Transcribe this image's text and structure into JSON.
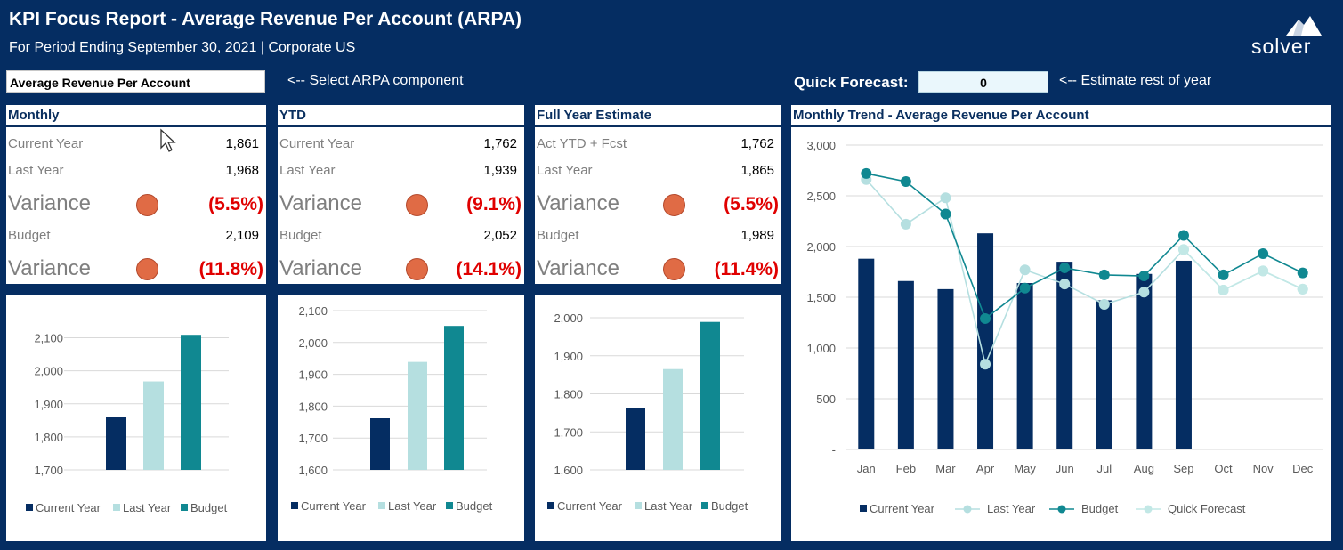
{
  "header": {
    "title": "KPI Focus Report - Average Revenue Per Account (ARPA)",
    "subtitle": "For Period Ending September 30, 2021 | Corporate US",
    "logo_text": "solver"
  },
  "controls": {
    "component_value": "Average Revenue Per Account",
    "component_hint": "<-- Select ARPA component",
    "quick_forecast_label": "Quick Forecast:",
    "quick_forecast_value": "0",
    "quick_forecast_hint": "<-- Estimate rest of year"
  },
  "colors": {
    "current_year": "#052d62",
    "last_year": "#b5dfe0",
    "budget": "#108891",
    "quick_forecast": "#c2e8e6",
    "variance_dot": "#e06b45",
    "variance_text": "#e00000"
  },
  "panels": [
    {
      "title": "Monthly",
      "row1_label": "Current Year",
      "row1_value": "1,861",
      "row2_label": "Last Year",
      "row2_value": "1,968",
      "var1_label": "Variance",
      "var1_value": "(5.5%)",
      "row3_label": "Budget",
      "row3_value": "2,109",
      "var2_label": "Variance",
      "var2_value": "(11.8%)"
    },
    {
      "title": "YTD",
      "row1_label": "Current Year",
      "row1_value": "1,762",
      "row2_label": "Last Year",
      "row2_value": "1,939",
      "var1_label": "Variance",
      "var1_value": "(9.1%)",
      "row3_label": "Budget",
      "row3_value": "2,052",
      "var2_label": "Variance",
      "var2_value": "(14.1%)"
    },
    {
      "title": "Full Year Estimate",
      "row1_label": "Act YTD + Fcst",
      "row1_value": "1,762",
      "row2_label": "Last Year",
      "row2_value": "1,865",
      "var1_label": "Variance",
      "var1_value": "(5.5%)",
      "row3_label": "Budget",
      "row3_value": "1,989",
      "var2_label": "Variance",
      "var2_value": "(11.4%)"
    }
  ],
  "trend_title": "Monthly Trend - Average Revenue Per Account",
  "chart_data": [
    {
      "type": "bar",
      "categories": [
        "Current Year",
        "Last Year",
        "Budget"
      ],
      "values": [
        1861,
        1968,
        2109
      ],
      "yticks": [
        "1,700",
        "1,800",
        "1,900",
        "2,000",
        "2,100"
      ],
      "ylim": [
        1700,
        2150
      ],
      "legend": [
        "Current Year",
        "Last Year",
        "Budget"
      ]
    },
    {
      "type": "bar",
      "categories": [
        "Current Year",
        "Last Year",
        "Budget"
      ],
      "values": [
        1762,
        1939,
        2052
      ],
      "yticks": [
        "1,600",
        "1,700",
        "1,800",
        "1,900",
        "2,000",
        "2,100"
      ],
      "ylim": [
        1600,
        2100
      ],
      "legend": [
        "Current Year",
        "Last Year",
        "Budget"
      ]
    },
    {
      "type": "bar",
      "categories": [
        "Current Year",
        "Last Year",
        "Budget"
      ],
      "values": [
        1762,
        1865,
        1989
      ],
      "yticks": [
        "1,600",
        "1,700",
        "1,800",
        "1,900",
        "2,000"
      ],
      "ylim": [
        1600,
        2000
      ],
      "legend": [
        "Current Year",
        "Last Year",
        "Budget"
      ]
    },
    {
      "type": "bar+line",
      "categories": [
        "Jan",
        "Feb",
        "Mar",
        "Apr",
        "May",
        "Jun",
        "Jul",
        "Aug",
        "Sep",
        "Oct",
        "Nov",
        "Dec"
      ],
      "yticks": [
        "-",
        "500",
        "1,000",
        "1,500",
        "2,000",
        "2,500",
        "3,000"
      ],
      "ylim": [
        0,
        3000
      ],
      "series": [
        {
          "name": "Current Year",
          "kind": "bar",
          "values": [
            1880,
            1660,
            1580,
            2130,
            1640,
            1850,
            1470,
            1730,
            1860,
            null,
            null,
            null
          ]
        },
        {
          "name": "Last Year",
          "kind": "line",
          "values": [
            2660,
            2220,
            2480,
            840,
            1770,
            1630,
            1430,
            1550,
            1970,
            1570,
            1760,
            1580
          ]
        },
        {
          "name": "Budget",
          "kind": "line",
          "values": [
            2720,
            2640,
            2320,
            1290,
            1590,
            1790,
            1720,
            1710,
            2110,
            1720,
            1930,
            1740
          ]
        },
        {
          "name": "Quick Forecast",
          "kind": "line",
          "values": [
            null,
            null,
            null,
            null,
            null,
            null,
            null,
            null,
            1970,
            1570,
            1760,
            1580
          ]
        }
      ]
    }
  ]
}
